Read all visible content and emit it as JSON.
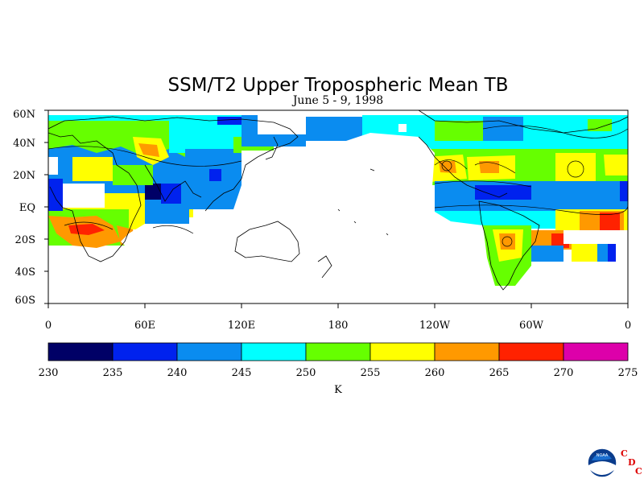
{
  "figure": {
    "title": "SSM/T2 Upper Tropospheric Mean TB",
    "subtitle": "June 5 - 9, 1998"
  },
  "map": {
    "projection": "cylindrical equidistant",
    "lon_range": [
      0,
      360
    ],
    "lat_range": [
      -60,
      60
    ],
    "lat_ticks": [
      "60N",
      "40N",
      "20N",
      "EQ",
      "20S",
      "40S",
      "60S"
    ],
    "lon_ticks": [
      "0",
      "60E",
      "120E",
      "180",
      "120W",
      "60W",
      "0"
    ],
    "field": "Upper tropospheric mean brightness temperature (K)",
    "missing_data": "white"
  },
  "colorbar": {
    "unit_label": "K",
    "levels": [
      "230",
      "235",
      "240",
      "245",
      "250",
      "255",
      "260",
      "265",
      "270",
      "275"
    ],
    "colors": [
      "#000066",
      "#0022ee",
      "#0a8cf0",
      "#00ffff",
      "#66ff00",
      "#ffff00",
      "#ff9900",
      "#ff2200",
      "#dd00aa"
    ]
  },
  "logo": {
    "agency": "NOAA",
    "letters": [
      "C",
      "D",
      "C"
    ]
  }
}
